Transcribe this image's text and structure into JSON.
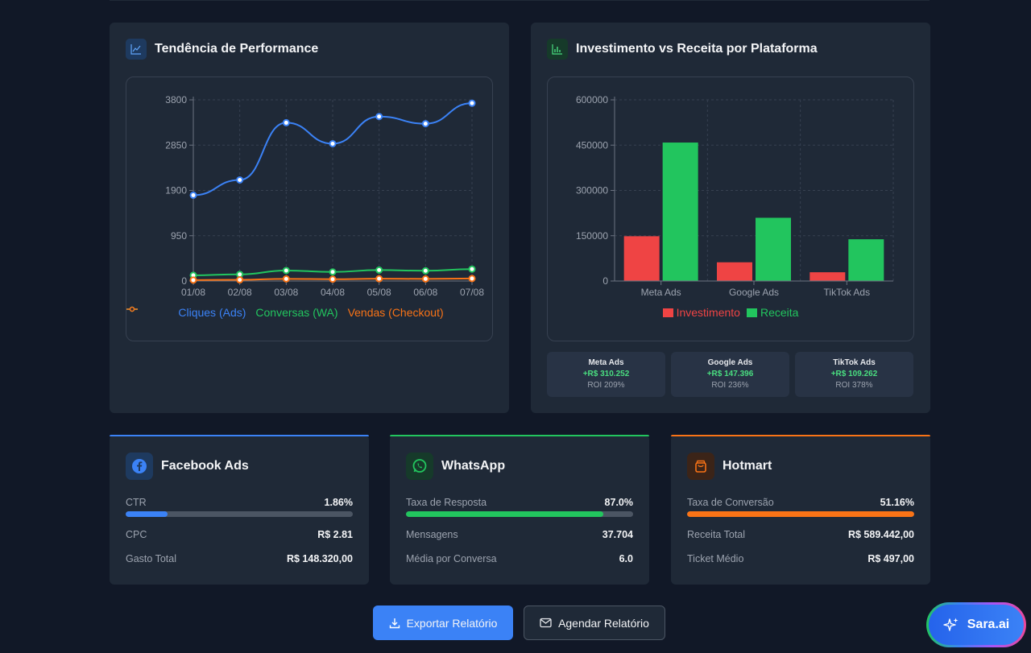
{
  "performance": {
    "title": "Tendência de Performance",
    "icon": "line-chart-icon",
    "chart_data": {
      "type": "line",
      "x": [
        "01/08",
        "02/08",
        "03/08",
        "04/08",
        "05/08",
        "06/08",
        "07/08"
      ],
      "yticks": [
        "3800",
        "2850",
        "1900",
        "950",
        "0"
      ],
      "ylim": [
        0,
        3800
      ],
      "grid": true,
      "legend_position": "bottom",
      "series": [
        {
          "name": "Cliques (Ads)",
          "color": "#3b82f6",
          "values": [
            1800,
            2120,
            3320,
            2880,
            3450,
            3300,
            3730
          ]
        },
        {
          "name": "Conversas (WA)",
          "color": "#22c55e",
          "values": [
            120,
            140,
            220,
            190,
            230,
            215,
            250
          ]
        },
        {
          "name": "Vendas (Checkout)",
          "color": "#f97316",
          "values": [
            20,
            25,
            45,
            38,
            48,
            44,
            52
          ]
        }
      ]
    }
  },
  "investment": {
    "title": "Investimento vs Receita por Plataforma",
    "icon": "bar-chart-icon",
    "chart_data": {
      "type": "bar",
      "categories": [
        "Meta Ads",
        "Google Ads",
        "TikTok Ads"
      ],
      "yticks": [
        "600000",
        "450000",
        "300000",
        "150000",
        "0"
      ],
      "ylim": [
        0,
        600000
      ],
      "grid": true,
      "legend_position": "bottom",
      "series": [
        {
          "name": "Investimento",
          "color": "#ef4444",
          "values": [
            148320,
            62000,
            29000
          ]
        },
        {
          "name": "Receita",
          "color": "#22c55e",
          "values": [
            458572,
            209396,
            138262
          ]
        }
      ]
    },
    "roi": [
      {
        "name": "Meta Ads",
        "value": "+R$ 310.252",
        "pct": "ROI 209%"
      },
      {
        "name": "Google Ads",
        "value": "+R$ 147.396",
        "pct": "ROI 236%"
      },
      {
        "name": "TikTok Ads",
        "value": "+R$ 109.262",
        "pct": "ROI 378%"
      }
    ]
  },
  "facebook": {
    "title": "Facebook Ads",
    "icon": "facebook-icon",
    "color": "#3b82f6",
    "ctr_label": "CTR",
    "ctr_value": "1.86%",
    "ctr_progress": 0.186,
    "cpc_label": "CPC",
    "cpc_value": "R$ 2.81",
    "spend_label": "Gasto Total",
    "spend_value": "R$ 148.320,00"
  },
  "whatsapp": {
    "title": "WhatsApp",
    "icon": "whatsapp-icon",
    "color": "#22c55e",
    "rate_label": "Taxa de Resposta",
    "rate_value": "87.0%",
    "rate_progress": 0.87,
    "msgs_label": "Mensagens",
    "msgs_value": "37.704",
    "avg_label": "Média por Conversa",
    "avg_value": "6.0"
  },
  "hotmart": {
    "title": "Hotmart",
    "icon": "shopping-bag-icon",
    "color": "#f97316",
    "conv_label": "Taxa de Conversão",
    "conv_value": "51.16%",
    "conv_progress": 1.0,
    "rev_label": "Receita Total",
    "rev_value": "R$ 589.442,00",
    "ticket_label": "Ticket Médio",
    "ticket_value": "R$ 497,00"
  },
  "actions": {
    "export_label": "Exportar Relatório",
    "export_icon": "download-icon",
    "schedule_label": "Agendar Relatório",
    "schedule_icon": "mail-icon"
  },
  "assistant": {
    "label": "Sara.ai",
    "icon": "sparkles-icon"
  }
}
